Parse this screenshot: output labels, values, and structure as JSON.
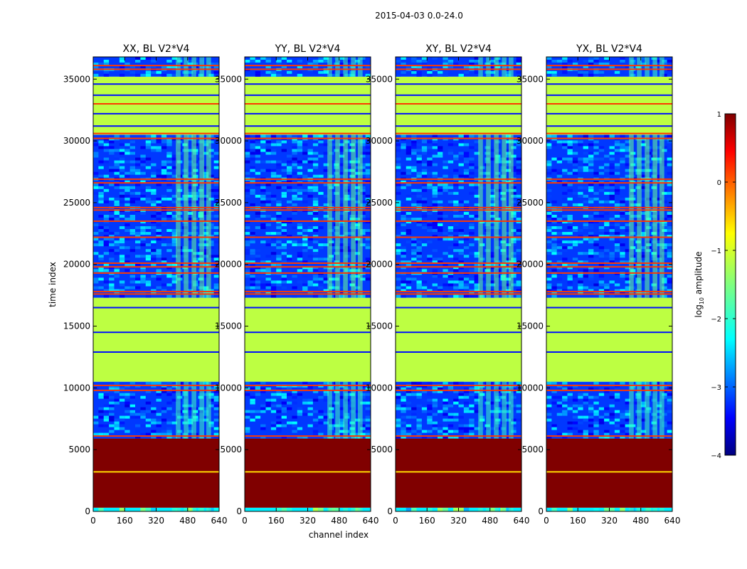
{
  "chart_data": {
    "type": "heatmap",
    "suptitle": "2015-04-03 0.0-24.0",
    "xlabel": "channel index",
    "ylabel": "time index",
    "x_ticks": [
      "0",
      "160",
      "320",
      "480",
      "640"
    ],
    "y_ticks": [
      "0",
      "5000",
      "10000",
      "15000",
      "20000",
      "25000",
      "30000",
      "35000"
    ],
    "xlim": [
      0,
      640
    ],
    "ylim": [
      0,
      36800
    ],
    "panels": [
      {
        "title": "XX, BL V2*V4"
      },
      {
        "title": "YY, BL V2*V4"
      },
      {
        "title": "XY, BL V2*V4"
      },
      {
        "title": "YX, BL V2*V4"
      }
    ],
    "colorbar": {
      "label_prefix": "log",
      "label_sub": "10",
      "label_suffix": " amplitude",
      "range": [
        -4,
        1
      ],
      "ticks": [
        "1",
        "0",
        "−1",
        "−2",
        "−3",
        "−4"
      ],
      "colormap": "jet"
    },
    "bands": [
      {
        "from": 0,
        "to": 300,
        "level": -2.2,
        "kind": "noisy"
      },
      {
        "from": 300,
        "to": 5900,
        "level": 1.0,
        "kind": "flat"
      },
      {
        "from": 5900,
        "to": 10500,
        "level": -3.1,
        "kind": "noisy"
      },
      {
        "from": 10500,
        "to": 17300,
        "level": -1.2,
        "kind": "flat"
      },
      {
        "from": 17300,
        "to": 30500,
        "level": -3.1,
        "kind": "noisy"
      },
      {
        "from": 30500,
        "to": 35200,
        "level": -1.2,
        "kind": "flat"
      },
      {
        "from": 35200,
        "to": 36800,
        "level": -3.1,
        "kind": "noisy"
      }
    ]
  }
}
